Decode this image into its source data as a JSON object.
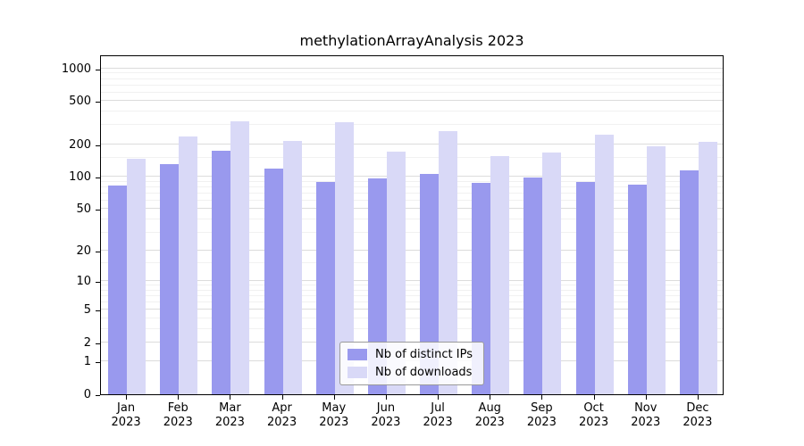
{
  "title": "methylationArrayAnalysis 2023",
  "chart_data": {
    "type": "bar",
    "title": "methylationArrayAnalysis 2023",
    "categories": [
      "Jan",
      "Feb",
      "Mar",
      "Apr",
      "May",
      "Jun",
      "Jul",
      "Aug",
      "Sep",
      "Oct",
      "Nov",
      "Dec"
    ],
    "year": "2023",
    "series": [
      {
        "name": "Nb of distinct IPs",
        "color": "#9999ee",
        "values": [
          82,
          130,
          175,
          120,
          90,
          97,
          106,
          87,
          99,
          90,
          84,
          115
        ]
      },
      {
        "name": "Nb of downloads",
        "color": "#d9d9f7",
        "values": [
          148,
          235,
          325,
          215,
          320,
          172,
          265,
          156,
          168,
          245,
          190,
          210
        ]
      }
    ],
    "yticks": [
      0,
      1,
      2,
      5,
      10,
      20,
      50,
      100,
      200,
      500,
      1000
    ],
    "xlabel": "",
    "ylabel": "",
    "scale": "log1p",
    "ylim": [
      0,
      1500
    ],
    "grid": true,
    "legend_position": "bottom-center"
  }
}
